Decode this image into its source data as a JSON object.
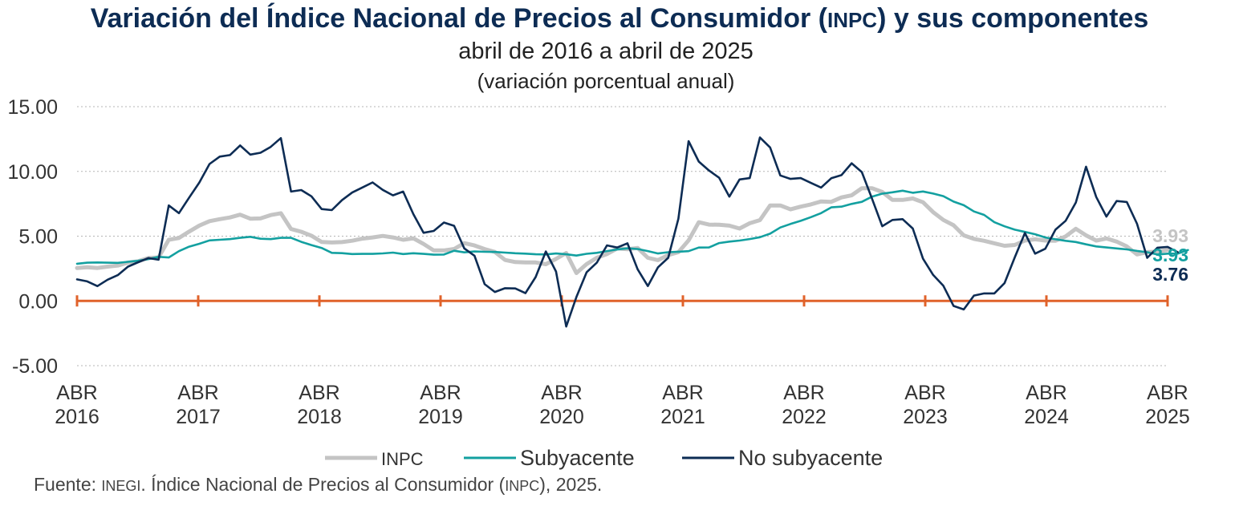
{
  "chart_data": {
    "type": "line",
    "title_parts": [
      "Variación del Índice Nacional de Precios al Consumidor (",
      "INPC",
      ") y sus componentes"
    ],
    "subtitle": "abril de 2016 a abril de 2025",
    "subtitle2": "(variación porcentual anual)",
    "y_ticks": [
      "15.00",
      "10.00",
      "5.00",
      "0.00",
      "-5.00"
    ],
    "ylim": [
      -5,
      15
    ],
    "x_ticks": [
      {
        "month": "ABR",
        "year": "2016"
      },
      {
        "month": "ABR",
        "year": "2017"
      },
      {
        "month": "ABR",
        "year": "2018"
      },
      {
        "month": "ABR",
        "year": "2019"
      },
      {
        "month": "ABR",
        "year": "2020"
      },
      {
        "month": "ABR",
        "year": "2021"
      },
      {
        "month": "ABR",
        "year": "2022"
      },
      {
        "month": "ABR",
        "year": "2023"
      },
      {
        "month": "ABR",
        "year": "2024"
      },
      {
        "month": "ABR",
        "year": "2025"
      }
    ],
    "grid": "horizontal dotted",
    "legend_position": "bottom",
    "zero_line_color": "#e0622a",
    "series": [
      {
        "name": "INPC",
        "color": "#c4c4c4",
        "end_label": "3.93",
        "values": [
          2.54,
          2.6,
          2.54,
          2.65,
          2.73,
          2.97,
          3.06,
          3.31,
          3.36,
          4.72,
          4.86,
          5.35,
          5.82,
          6.16,
          6.31,
          6.44,
          6.66,
          6.35,
          6.37,
          6.63,
          6.77,
          5.55,
          5.34,
          5.04,
          4.55,
          4.51,
          4.54,
          4.65,
          4.81,
          4.9,
          5.02,
          4.9,
          4.72,
          4.83,
          4.4,
          3.9,
          3.9,
          4.01,
          4.46,
          4.28,
          4.0,
          3.78,
          3.16,
          3.0,
          2.97,
          2.97,
          2.83,
          3.24,
          3.7,
          2.15,
          2.84,
          3.33,
          3.62,
          4.05,
          3.99,
          4.09,
          3.33,
          3.15,
          3.54,
          3.76,
          4.67,
          6.08,
          5.89,
          5.88,
          5.81,
          5.59,
          6.0,
          6.24,
          7.37,
          7.37,
          7.07,
          7.28,
          7.45,
          7.68,
          7.65,
          7.99,
          8.15,
          8.7,
          8.7,
          8.41,
          7.8,
          7.8,
          7.91,
          7.62,
          6.85,
          6.25,
          5.84,
          5.06,
          4.79,
          4.64,
          4.45,
          4.26,
          4.32,
          4.66,
          4.76,
          4.66,
          4.65,
          4.98,
          5.57,
          5.06,
          4.66,
          4.82,
          4.58,
          4.21,
          3.59,
          3.77,
          3.8,
          3.93
        ]
      },
      {
        "name": "Subyacente",
        "color": "#13a0a0",
        "end_label": "3.93",
        "values": [
          2.87,
          2.95,
          2.97,
          2.95,
          2.94,
          3.02,
          3.1,
          3.23,
          3.4,
          3.35,
          3.84,
          4.19,
          4.41,
          4.67,
          4.72,
          4.77,
          4.87,
          4.95,
          4.8,
          4.77,
          4.87,
          4.87,
          4.56,
          4.31,
          4.09,
          3.71,
          3.69,
          3.62,
          3.63,
          3.63,
          3.67,
          3.73,
          3.62,
          3.68,
          3.63,
          3.57,
          3.58,
          3.87,
          3.75,
          3.82,
          3.79,
          3.78,
          3.73,
          3.68,
          3.65,
          3.6,
          3.59,
          3.66,
          3.6,
          3.5,
          3.64,
          3.71,
          3.85,
          3.97,
          4.06,
          4.01,
          3.85,
          3.66,
          3.76,
          3.8,
          3.84,
          4.12,
          4.13,
          4.47,
          4.58,
          4.66,
          4.78,
          4.92,
          5.19,
          5.67,
          5.94,
          6.18,
          6.47,
          6.78,
          7.22,
          7.28,
          7.49,
          7.65,
          8.05,
          8.28,
          8.39,
          8.51,
          8.35,
          8.45,
          8.29,
          8.09,
          7.67,
          7.39,
          6.91,
          6.64,
          6.08,
          5.76,
          5.5,
          5.33,
          5.15,
          4.9,
          4.76,
          4.64,
          4.55,
          4.37,
          4.21,
          4.13,
          4.05,
          3.98,
          3.86,
          3.76,
          3.58,
          3.65,
          3.65,
          3.93
        ]
      },
      {
        "name": "No subyacente",
        "color": "#0d2c54",
        "end_label": "3.76",
        "values": [
          1.66,
          1.51,
          1.14,
          1.64,
          1.99,
          2.65,
          2.99,
          3.31,
          3.18,
          7.37,
          6.78,
          7.98,
          9.14,
          10.57,
          11.14,
          11.26,
          12.0,
          11.3,
          11.44,
          11.89,
          12.57,
          8.44,
          8.56,
          8.08,
          7.09,
          7.01,
          7.78,
          8.37,
          8.76,
          9.15,
          8.57,
          8.15,
          8.44,
          6.7,
          5.26,
          5.4,
          6.05,
          5.8,
          4.05,
          3.49,
          1.29,
          0.69,
          0.98,
          0.96,
          0.6,
          1.84,
          3.82,
          2.27,
          -1.98,
          0.3,
          2.21,
          2.95,
          4.29,
          4.12,
          4.45,
          2.44,
          1.15,
          2.6,
          3.33,
          6.35,
          12.34,
          10.76,
          10.07,
          9.51,
          8.05,
          9.38,
          9.48,
          12.62,
          11.85,
          9.69,
          9.42,
          9.48,
          9.11,
          8.75,
          9.47,
          9.71,
          10.63,
          9.95,
          7.89,
          5.77,
          6.25,
          6.31,
          5.59,
          3.26,
          2.0,
          1.17,
          -0.39,
          -0.66,
          0.41,
          0.58,
          0.58,
          1.37,
          3.35,
          5.25,
          3.65,
          4.03,
          5.5,
          6.19,
          7.6,
          10.36,
          8.02,
          6.51,
          7.71,
          7.64,
          5.96,
          3.33,
          4.11,
          4.17,
          3.76
        ]
      }
    ]
  },
  "source_parts": [
    "Fuente: ",
    "INEGI",
    ". Índice Nacional de Precios al Consumidor (",
    "INPC",
    "), 2025."
  ]
}
